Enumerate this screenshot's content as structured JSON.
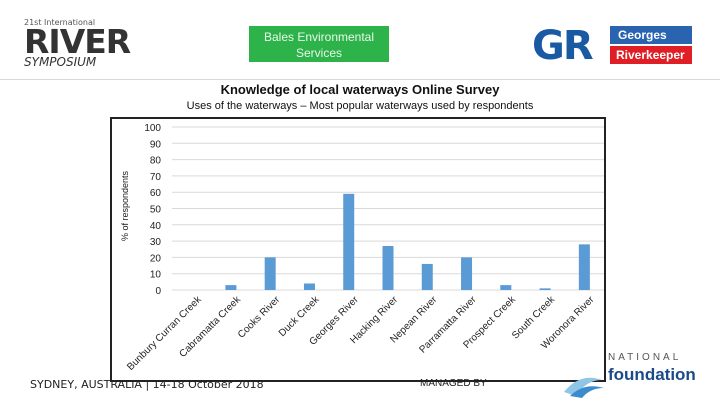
{
  "header": {
    "river_logo": {
      "small": "21st International",
      "big": "RIVER",
      "sub": "SYMPOSIUM"
    },
    "bales": {
      "line1": "Bales Environmental",
      "line2": "Services"
    },
    "georges": {
      "mark": "GR",
      "top": "Georges",
      "bottom": "Riverkeeper"
    }
  },
  "title": "Knowledge of local waterways Online Survey",
  "subtitle": "Uses of the waterways – Most popular waterways used by respondents",
  "footer": {
    "left": "SYDNEY, AUSTRALIA | 14-18 October 2018",
    "middle": "MANAGED BY",
    "national": "NATIONAL",
    "foundation": "foundation"
  },
  "colors": {
    "bar": "#5b9bd5",
    "grid": "#d9d9d9",
    "bales_green": "#2db34a",
    "gr_blue": "#2a63b0",
    "gr_red": "#e01e25"
  },
  "chart_data": {
    "type": "bar",
    "ylabel": "% of respondents",
    "xlabel": "",
    "ylim": [
      0,
      100
    ],
    "yticks": [
      0,
      10,
      20,
      30,
      40,
      50,
      60,
      70,
      80,
      90,
      100
    ],
    "grid": true,
    "categories": [
      "Bunbury Curran Creek",
      "Cabramatta Creek",
      "Cooks River",
      "Duck Creek",
      "Georges River",
      "Hacking River",
      "Nepean River",
      "Parramatta River",
      "Prospect Creek",
      "South Creek",
      "Woronora River"
    ],
    "values": [
      0,
      3,
      20,
      4,
      59,
      27,
      16,
      20,
      3,
      1,
      28
    ]
  }
}
